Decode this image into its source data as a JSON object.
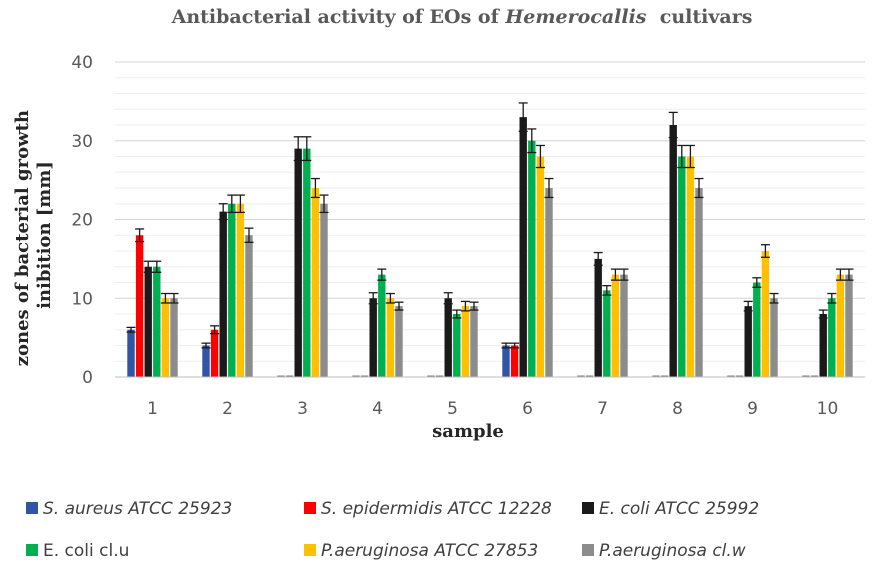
{
  "chart_data": {
    "type": "bar",
    "title": {
      "prefix": "Antibacterial activity of EOs of ",
      "emphasis": "Hemerocallis",
      "suffix": "  cultivars"
    },
    "xlabel": "sample",
    "ylabel_lines": [
      "zones of bacterial growth",
      "inibition [mm]"
    ],
    "ylim": [
      0,
      40
    ],
    "yticks": [
      0,
      10,
      20,
      30,
      40
    ],
    "categories": [
      "1",
      "2",
      "3",
      "4",
      "5",
      "6",
      "7",
      "8",
      "9",
      "10"
    ],
    "grid": true,
    "legend_position": "bottom",
    "series": [
      {
        "name": "S. aureus ATCC 25923",
        "italic": true,
        "color": "#2f55a4",
        "values": [
          6,
          4,
          0,
          0,
          0,
          4,
          0,
          0,
          0,
          0
        ],
        "errors": [
          0.3,
          0.3,
          0,
          0,
          0,
          0.3,
          0,
          0,
          0,
          0
        ]
      },
      {
        "name": "S. epidermidis ATCC 12228",
        "italic": true,
        "color": "#ff0000",
        "values": [
          18,
          6,
          0,
          0,
          0,
          4,
          0,
          0,
          0,
          0
        ],
        "errors": [
          0.8,
          0.5,
          0,
          0,
          0,
          0.3,
          0,
          0,
          0,
          0
        ]
      },
      {
        "name": "E. coli ATCC 25992",
        "italic": true,
        "color": "#1a1a1a",
        "values": [
          14,
          21,
          29,
          10,
          10,
          33,
          15,
          32,
          9,
          8
        ],
        "errors": [
          0.7,
          1.0,
          1.5,
          0.7,
          0.7,
          1.8,
          0.8,
          1.6,
          0.6,
          0.5
        ]
      },
      {
        "name": "E. coli cl.u",
        "italic": false,
        "color": "#00b050",
        "values": [
          14,
          22,
          29,
          13,
          8,
          30,
          11,
          28,
          12,
          10
        ],
        "errors": [
          0.7,
          1.1,
          1.5,
          0.7,
          0.5,
          1.5,
          0.6,
          1.4,
          0.6,
          0.6
        ]
      },
      {
        "name": "P.aeruginosa ATCC 27853",
        "italic": true,
        "color": "#ffc000",
        "values": [
          10,
          22,
          24,
          10,
          9,
          28,
          13,
          28,
          16,
          13
        ],
        "errors": [
          0.6,
          1.1,
          1.2,
          0.6,
          0.6,
          1.4,
          0.7,
          1.4,
          0.8,
          0.7
        ]
      },
      {
        "name": "P.aeruginosa cl.w",
        "italic": true,
        "color": "#8c8c8c",
        "values": [
          10,
          18,
          22,
          9,
          9,
          24,
          13,
          24,
          10,
          13
        ],
        "errors": [
          0.6,
          0.9,
          1.1,
          0.5,
          0.5,
          1.2,
          0.7,
          1.2,
          0.6,
          0.7
        ]
      }
    ]
  }
}
